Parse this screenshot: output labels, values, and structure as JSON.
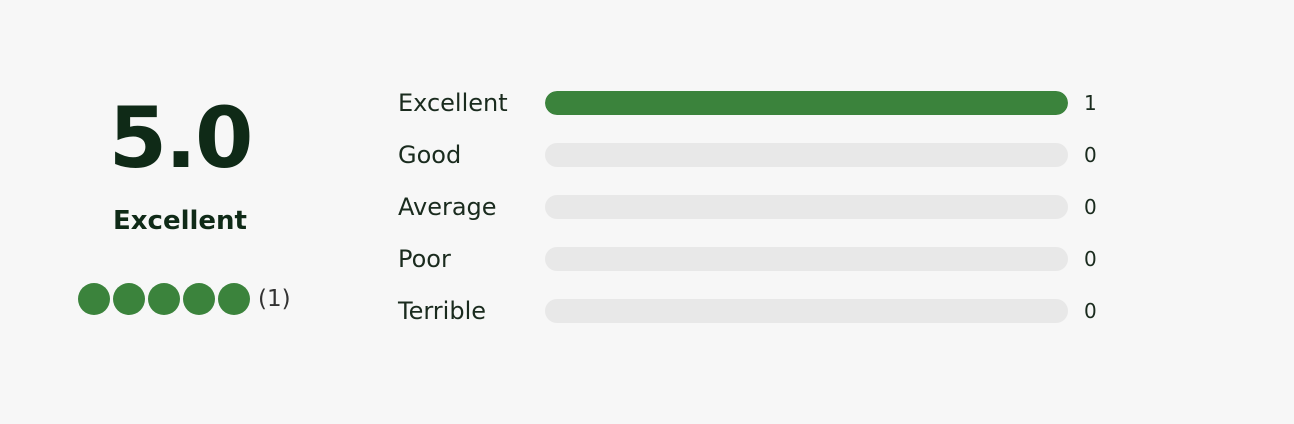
{
  "summary": {
    "score": "5.0",
    "label": "Excellent",
    "review_count": "(1)"
  },
  "breakdown": [
    {
      "label": "Excellent",
      "count": 1
    },
    {
      "label": "Good",
      "count": 0
    },
    {
      "label": "Average",
      "count": 0
    },
    {
      "label": "Poor",
      "count": 0
    },
    {
      "label": "Terrible",
      "count": 0
    }
  ]
}
